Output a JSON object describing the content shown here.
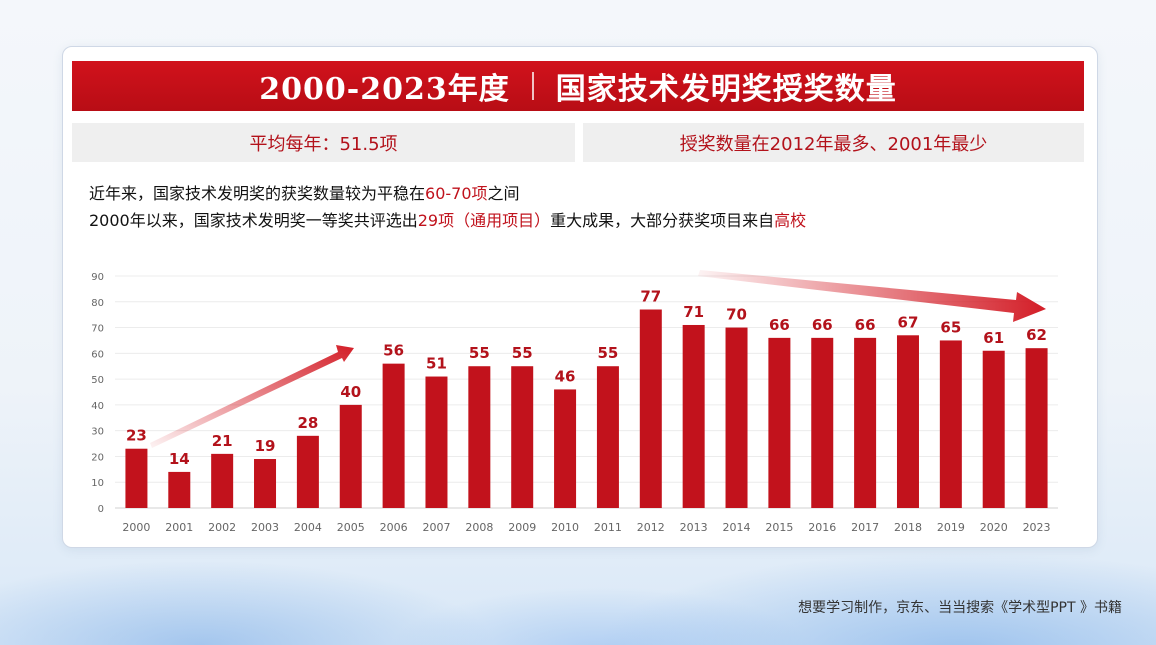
{
  "title": {
    "left": "2000-2023年度",
    "right": "国家技术发明奖授奖数量"
  },
  "info": {
    "left": "平均每年：51.5项",
    "right": "授奖数量在2012年最多、2001年最少"
  },
  "description": {
    "line1_pre": "近年来，国家技术发明奖的获奖数量较为平稳在",
    "line1_hl": "60-70项",
    "line1_post": "之间",
    "line2_pre": "2000年以来，国家技术发明奖一等奖共评选出",
    "line2_hl1": "29项（通用项目）",
    "line2_mid": "重大成果，大部分获奖项目来自",
    "line2_hl2": "高校"
  },
  "footer": "想要学习制作，京东、当当搜索《学术型PPT 》书籍",
  "colors": {
    "bar": "#c2121c",
    "label": "#b3121b",
    "accent": "#d1121c"
  },
  "chart_data": {
    "type": "bar",
    "categories": [
      "2000",
      "2001",
      "2002",
      "2003",
      "2004",
      "2005",
      "2006",
      "2007",
      "2008",
      "2009",
      "2010",
      "2011",
      "2012",
      "2013",
      "2014",
      "2015",
      "2016",
      "2017",
      "2018",
      "2019",
      "2020",
      "2023"
    ],
    "values": [
      23,
      14,
      21,
      19,
      28,
      40,
      56,
      51,
      55,
      55,
      46,
      55,
      77,
      71,
      70,
      66,
      66,
      66,
      67,
      65,
      61,
      62
    ],
    "yticks": [
      0,
      10,
      20,
      30,
      40,
      50,
      60,
      70,
      80,
      90
    ],
    "ylim": [
      0,
      90
    ],
    "grid": true,
    "data_labels": true
  }
}
